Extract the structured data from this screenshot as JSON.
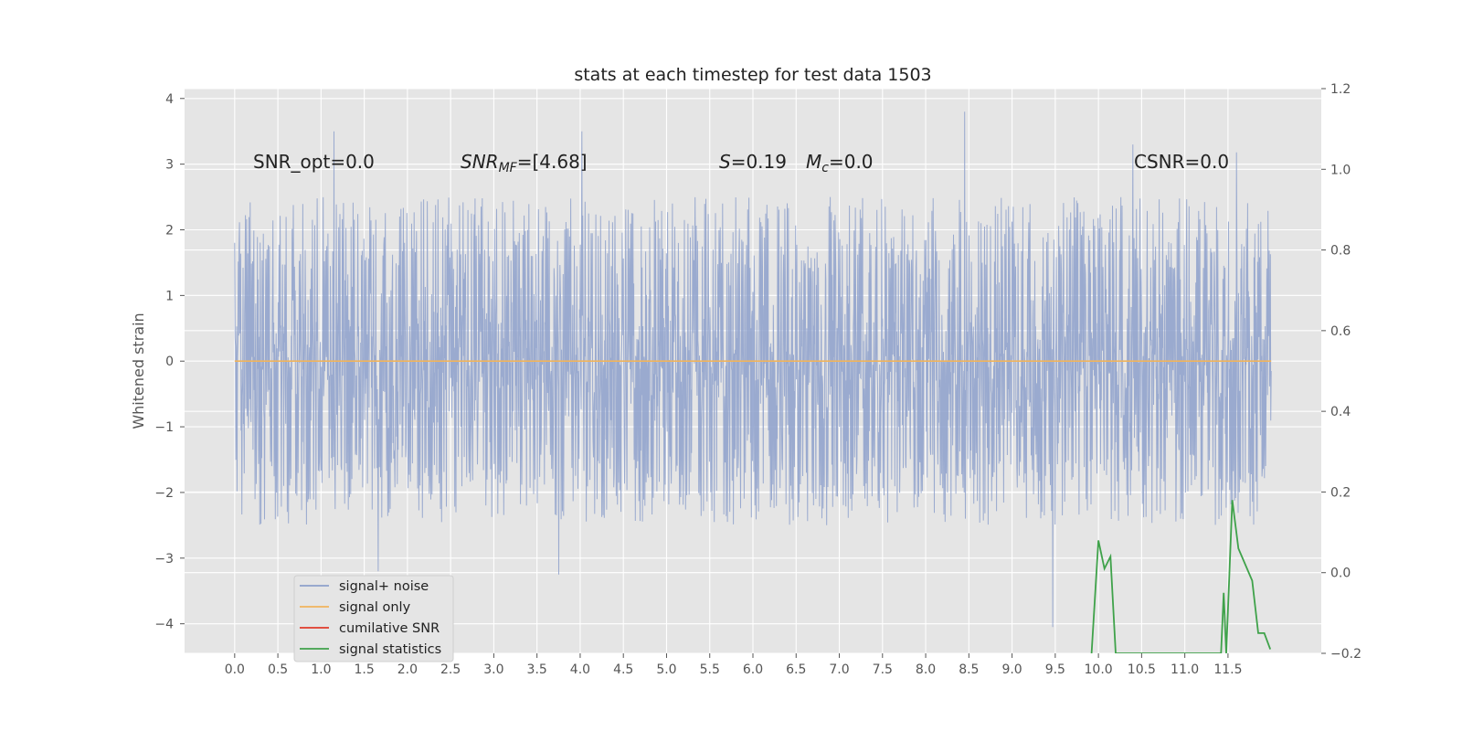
{
  "chart_data": {
    "type": "line",
    "title": "stats at each timestep for test data 1503",
    "ylabel": "Whitened strain",
    "xlim": [
      -0.58,
      12.58
    ],
    "ylim": [
      -4.45,
      4.15
    ],
    "y2lim": [
      -0.2,
      1.2
    ],
    "x_ticks": [
      "0.0",
      "0.5",
      "1.0",
      "1.5",
      "2.0",
      "2.5",
      "3.0",
      "3.5",
      "4.0",
      "4.5",
      "5.0",
      "5.5",
      "6.0",
      "6.5",
      "7.0",
      "7.5",
      "8.0",
      "8.5",
      "9.0",
      "9.5",
      "10.0",
      "10.5",
      "11.0",
      "11.5"
    ],
    "y_ticks": [
      "4",
      "3",
      "2",
      "1",
      "0",
      "−1",
      "−2",
      "−3",
      "−4"
    ],
    "y2_ticks": [
      "1.2",
      "1.0",
      "0.8",
      "0.6",
      "0.4",
      "0.2",
      "0.0",
      "−0.2"
    ],
    "grid": true,
    "legend_position": "lower-left",
    "annotations": {
      "snr_opt": "SNR_opt=0.0",
      "snr_mf_prefix": "SNR",
      "snr_mf_sub": "MF",
      "snr_mf_value": "=[4.68]",
      "s_symbol": "S",
      "s_value": "=0.19",
      "mc_symbol": "M",
      "mc_sub": "c",
      "mc_value": "=0.0",
      "csnr": "CSNR=0.0"
    },
    "series": [
      {
        "name": "signal+ noise",
        "color": "#8da0cb",
        "description_range": [
          0.0,
          12.0
        ],
        "envelope_typical": [
          -1.8,
          1.8
        ],
        "extremes": [
          {
            "x": 1.15,
            "y": 3.5
          },
          {
            "x": 4.02,
            "y": 3.5
          },
          {
            "x": 8.45,
            "y": 3.8
          },
          {
            "x": 1.66,
            "y": -3.2
          },
          {
            "x": 3.75,
            "y": -3.25
          },
          {
            "x": 9.47,
            "y": -4.05
          },
          {
            "x": 11.6,
            "y": 3.18
          },
          {
            "x": 10.4,
            "y": 3.3
          }
        ]
      },
      {
        "name": "signal only",
        "color": "#f0b45c",
        "x": [
          0.0,
          12.0
        ],
        "y": [
          0.0,
          0.0
        ]
      },
      {
        "name": "cumilative SNR",
        "color": "#e03a2a",
        "x": [],
        "y": []
      },
      {
        "name": "signal statistics",
        "color": "#3fa24a",
        "axis": "right",
        "x": [
          9.92,
          10.0,
          10.07,
          10.14,
          10.2,
          11.42,
          11.45,
          11.48,
          11.55,
          11.62,
          11.78,
          11.85,
          11.92,
          11.99
        ],
        "y": [
          -0.2,
          0.08,
          0.01,
          0.04,
          -0.2,
          -0.2,
          -0.05,
          -0.2,
          0.18,
          0.06,
          -0.02,
          -0.15,
          -0.15,
          -0.19
        ]
      }
    ]
  }
}
